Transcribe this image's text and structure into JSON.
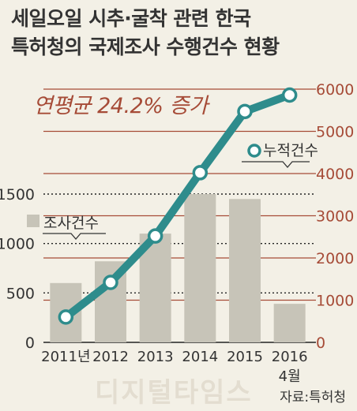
{
  "title_lines": [
    "세일오일 시추·굴착 관련 한국",
    "특허청의 국제조사 수행건수 현황"
  ],
  "annotation": "연평균 24.2% 증가",
  "source": "자료:특허청",
  "watermark": "디지털타임스",
  "colors": {
    "bar": "#c7c4b8",
    "line": "#2e8c8c",
    "right_axis": "#a64b37",
    "annotation": "#a64b37"
  },
  "chart_data": {
    "type": "bar+line",
    "categories": [
      "2011년",
      "2012",
      "2013",
      "2014",
      "2015",
      "2016"
    ],
    "category_sublabels": [
      "",
      "",
      "",
      "",
      "",
      "4월"
    ],
    "series": [
      {
        "name": "조사건수",
        "type": "bar",
        "axis": "left",
        "values": [
          600,
          820,
          1100,
          1500,
          1450,
          390
        ]
      },
      {
        "name": "누적건수",
        "type": "line",
        "axis": "right",
        "values": [
          600,
          1420,
          2520,
          4020,
          5470,
          5860
        ]
      }
    ],
    "left_axis": {
      "ylim": [
        0,
        1500
      ],
      "ticks": [
        0,
        500,
        1000,
        1500
      ]
    },
    "right_axis": {
      "ylim": [
        0,
        6000
      ],
      "ticks": [
        0,
        1000,
        2000,
        3000,
        4000,
        5000,
        6000
      ]
    },
    "legend": {
      "bar_label": "조사건수",
      "line_label": "누적건수"
    }
  }
}
